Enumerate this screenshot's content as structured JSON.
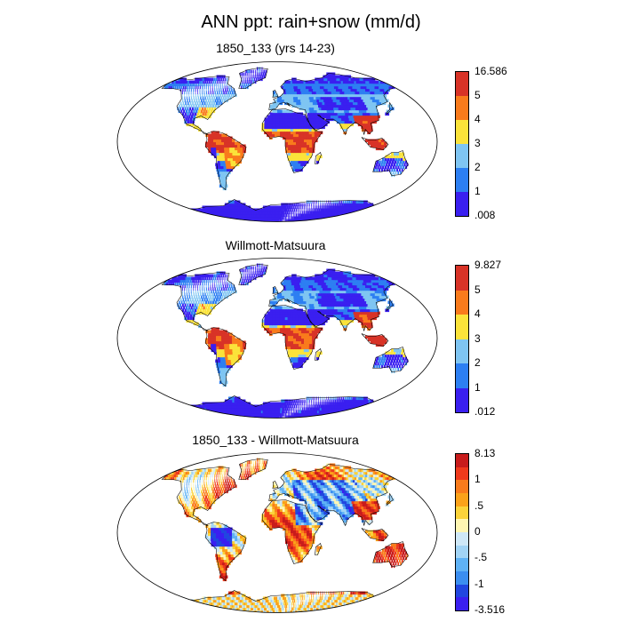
{
  "title": "ANN ppt: rain+snow (mm/d)",
  "panels": [
    {
      "id": "model",
      "title": "1850_133 (yrs 14-23)",
      "colorbar": {
        "colors": [
          "#3a1ff0",
          "#2d7ff2",
          "#7fc5f2",
          "#fbe33a",
          "#f97b1c",
          "#d83327"
        ],
        "labels": [
          "16.586",
          "5",
          "4",
          "3",
          "2",
          "1",
          ".008"
        ]
      }
    },
    {
      "id": "obs",
      "title": "Willmott-Matsuura",
      "colorbar": {
        "colors": [
          "#3a1ff0",
          "#2d7ff2",
          "#7fc5f2",
          "#fbe33a",
          "#f97b1c",
          "#d83327"
        ],
        "labels": [
          "9.827",
          "5",
          "4",
          "3",
          "2",
          "1",
          ".012"
        ]
      }
    },
    {
      "id": "diff",
      "title": "1850_133 - Willmott-Matsuura",
      "colorbar": {
        "colors": [
          "#3a1ff0",
          "#2146e0",
          "#3b8ef0",
          "#5fb2f5",
          "#a2d4f5",
          "#cfe8f7",
          "#fff6b2",
          "#fbd33a",
          "#fba21a",
          "#f97b1c",
          "#ef3a1c",
          "#c81c1c"
        ],
        "labels": [
          "8.13",
          "1",
          ".5",
          "0",
          "-.5",
          "-1",
          "-3.516"
        ]
      }
    }
  ]
}
